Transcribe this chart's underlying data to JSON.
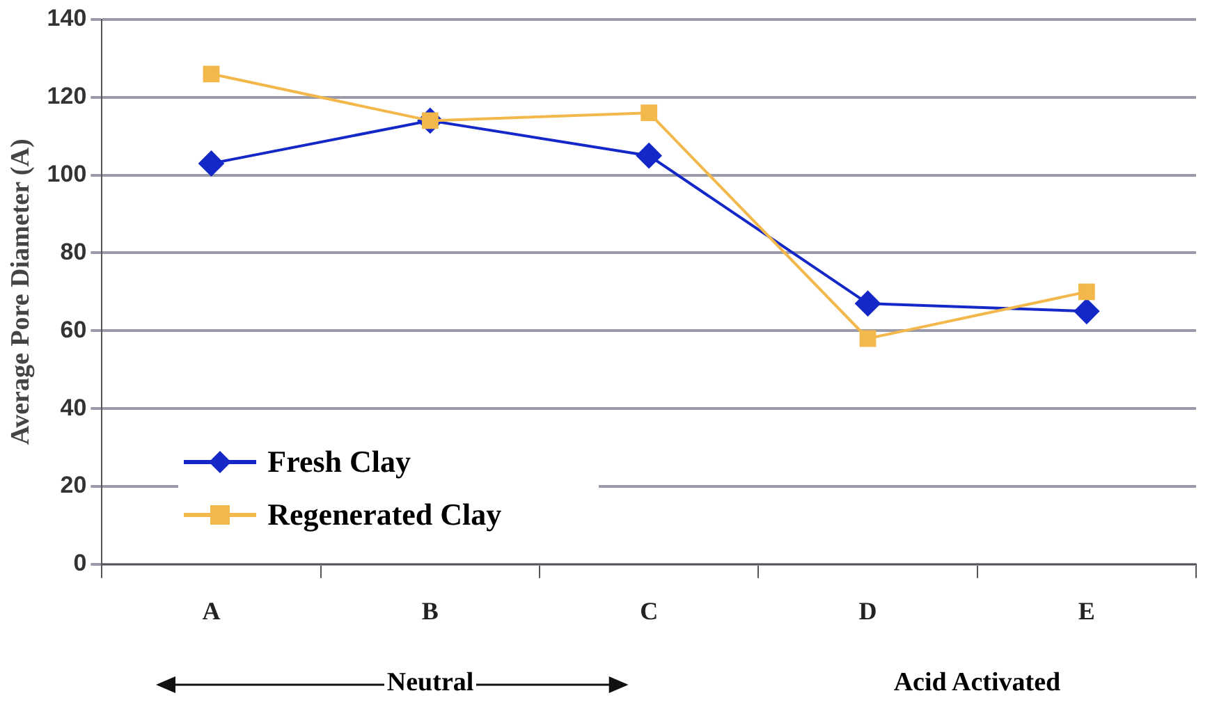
{
  "chart_data": {
    "type": "line",
    "ylabel": "Average Pore Diameter (A)",
    "categories": [
      "A",
      "B",
      "C",
      "D",
      "E"
    ],
    "series": [
      {
        "name": "Fresh Clay",
        "color": "#1428c8",
        "marker": "diamond",
        "values": [
          103,
          114,
          105,
          67,
          65
        ]
      },
      {
        "name": "Regenerated Clay",
        "color": "#f2b84b",
        "marker": "square",
        "values": [
          126,
          114,
          116,
          58,
          70
        ]
      }
    ],
    "ylim": [
      0,
      140
    ],
    "yticks": [
      0,
      20,
      40,
      60,
      80,
      100,
      120,
      140
    ],
    "grid": "y",
    "legend": "bottom left",
    "annotations": [
      "Neutral",
      "Acid Activated"
    ]
  }
}
